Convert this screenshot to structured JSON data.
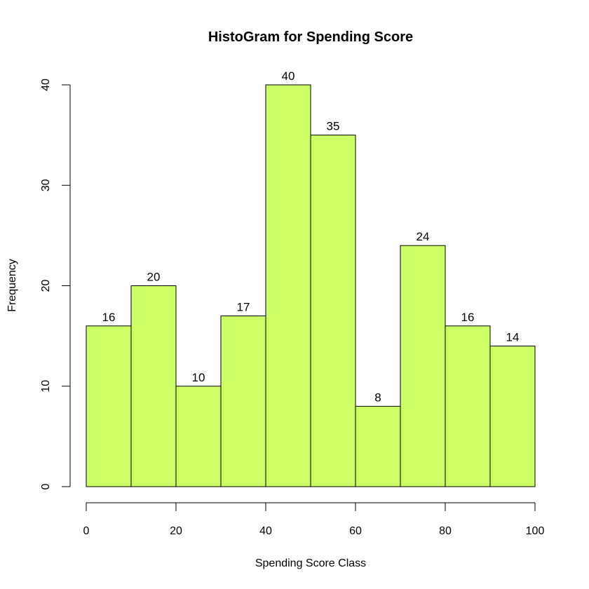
{
  "chart_data": {
    "type": "bar",
    "title": "HistoGram for Spending Score",
    "xlabel": "Spending Score Class",
    "ylabel": "Frequency",
    "bins": [
      {
        "start": 0,
        "end": 10,
        "value": 16
      },
      {
        "start": 10,
        "end": 20,
        "value": 20
      },
      {
        "start": 20,
        "end": 30,
        "value": 10
      },
      {
        "start": 30,
        "end": 40,
        "value": 17
      },
      {
        "start": 40,
        "end": 50,
        "value": 40
      },
      {
        "start": 50,
        "end": 60,
        "value": 35
      },
      {
        "start": 60,
        "end": 70,
        "value": 8
      },
      {
        "start": 70,
        "end": 80,
        "value": 24
      },
      {
        "start": 80,
        "end": 90,
        "value": 16
      },
      {
        "start": 90,
        "end": 100,
        "value": 14
      }
    ],
    "xlim": [
      0,
      100
    ],
    "ylim": [
      0,
      40
    ],
    "xticks": [
      0,
      20,
      40,
      60,
      80,
      100
    ],
    "yticks": [
      0,
      10,
      20,
      30,
      40
    ],
    "bar_color": "#CCFF66",
    "grid": false,
    "legend": "none"
  }
}
